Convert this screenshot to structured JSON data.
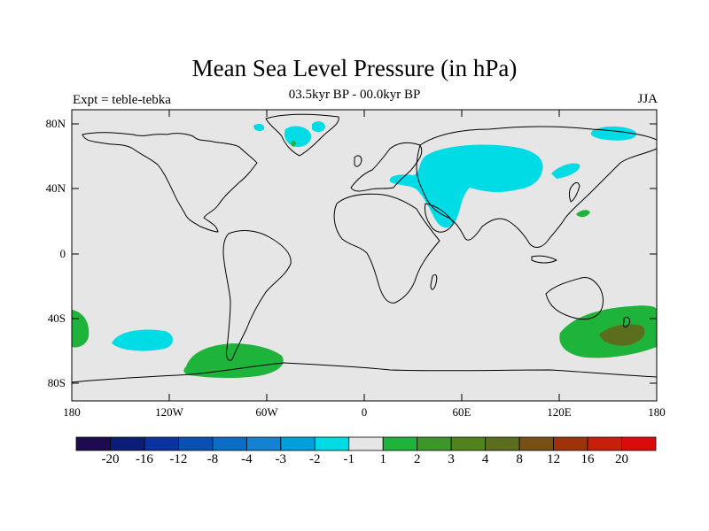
{
  "title": "Mean Sea Level Pressure (in hPa)",
  "subtitle_left": "Expt = teble-tebka",
  "subtitle_center": "03.5kyr BP - 00.0kyr BP",
  "subtitle_right": "JJA",
  "colors": {
    "land_background": "#e6e6e6",
    "negative_light": "#00dce6",
    "positive_light": "#1eb43c",
    "positive_medium": "#3c9628",
    "positive_dark": "#5a6e1e"
  },
  "map": {
    "lat_ticks": [
      "80N",
      "40N",
      "0",
      "40S",
      "80S"
    ],
    "lon_ticks": [
      "180",
      "120W",
      "60W",
      "0",
      "60E",
      "120E",
      "180"
    ]
  },
  "colorbar": {
    "colors": [
      "#1e0a50",
      "#0a1e78",
      "#0a32a0",
      "#0a50b4",
      "#0a6ec8",
      "#1482d2",
      "#00a0dc",
      "#00dce6",
      "#e6e6e6",
      "#1eb43c",
      "#3c9628",
      "#50821e",
      "#5a6e1e",
      "#785014",
      "#a0320a",
      "#c81e0a",
      "#dc0a0a"
    ],
    "labels": [
      "-20",
      "-16",
      "-12",
      "-8",
      "-4",
      "-3",
      "-2",
      "-1",
      "1",
      "2",
      "3",
      "4",
      "8",
      "12",
      "16",
      "20"
    ]
  }
}
